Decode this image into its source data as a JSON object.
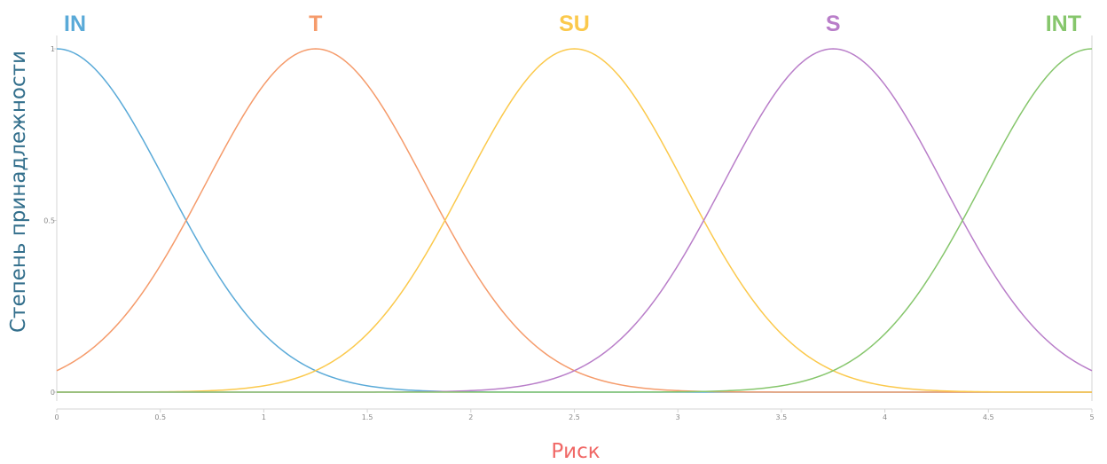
{
  "chart_data": {
    "type": "line",
    "title": "",
    "xlabel": "Риск",
    "ylabel": "Степень принадлежности",
    "xlim": [
      0,
      5
    ],
    "ylim": [
      0,
      1
    ],
    "x_ticks": [
      "0",
      "0.5",
      "1",
      "1.5",
      "2",
      "2.5",
      "3",
      "3.5",
      "4",
      "4.5",
      "5"
    ],
    "y_ticks": [
      "0",
      "0.5",
      "1"
    ],
    "grid": false,
    "curve": "gaussian",
    "sigma": 0.531,
    "series": [
      {
        "name": "IN",
        "center": 0,
        "color": "#5aaad8"
      },
      {
        "name": "T",
        "center": 1.25,
        "color": "#f59b6b"
      },
      {
        "name": "SU",
        "center": 2.5,
        "color": "#fbc94c"
      },
      {
        "name": "S",
        "center": 3.75,
        "color": "#b97ec9"
      },
      {
        "name": "INT",
        "center": 5,
        "color": "#86c66c"
      }
    ],
    "xlabel_color": "#f06866",
    "ylabel_color": "#336f8c",
    "axis_color": "#d4d4d4"
  }
}
